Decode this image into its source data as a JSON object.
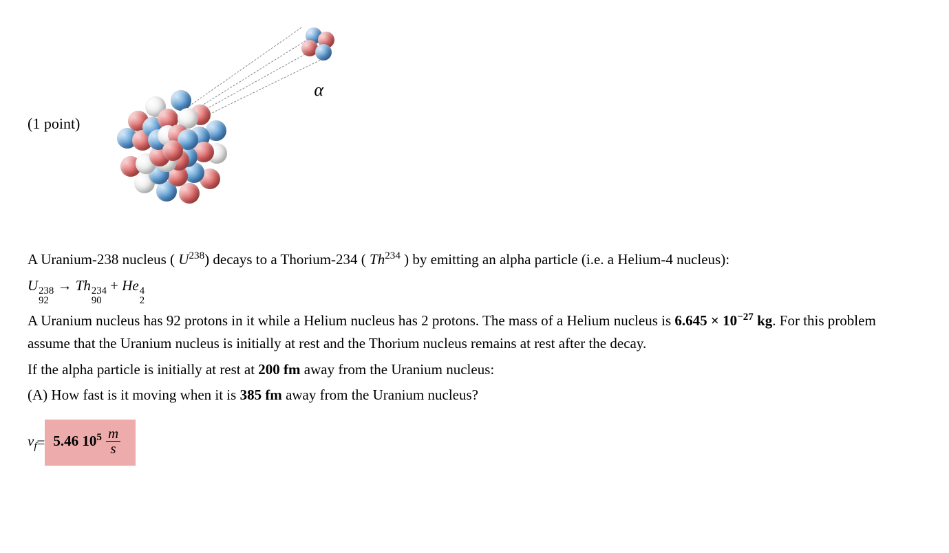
{
  "points_label": "(1 point)",
  "alpha_symbol": "α",
  "diagram": {
    "nucleus_ball_size": 30,
    "alpha_ball_size": 24,
    "colors": {
      "red": "#cc5555",
      "blue": "#5a9bd4",
      "white": "#eeeeee"
    }
  },
  "problem": {
    "line1_a": "A Uranium-238 nucleus ( ",
    "line1_u": "U",
    "line1_u_sup": "238",
    "line1_b": ") decays to a Thorium-234 ( ",
    "line1_th": "Th",
    "line1_th_sup": "234",
    "line1_c": " ) by emitting an alpha particle (i.e. a Helium-4 nucleus):",
    "eq_u": "U",
    "eq_u_sup": "238",
    "eq_u_sub": "92",
    "eq_arrow": " → ",
    "eq_th": "Th",
    "eq_th_sup": "234",
    "eq_th_sub": "90",
    "eq_plus": " + ",
    "eq_he": "He",
    "eq_he_sup": "4",
    "eq_he_sub": "2",
    "line3_a": "A Uranium nucleus has 92 protons in it while a Helium nucleus has 2 protons. The mass of a Helium nucleus is ",
    "mass_val": "6.645 × 10",
    "mass_exp": "−27",
    "mass_unit": " kg",
    "line3_b": ". For this problem assume that the Uranium nucleus is initially at rest and the Thorium nucleus remains at rest after the decay.",
    "line4_a": "If the alpha particle is initially at rest at ",
    "r1": "200 fm",
    "line4_b": " away from the Uranium nucleus:",
    "qA_a": "(A) How fast is it moving when it is ",
    "r2": "385 fm",
    "qA_b": " away from the Uranium nucleus?"
  },
  "answer": {
    "lhs_v": "v",
    "lhs_sub": "f",
    "equals": " = ",
    "value": "5.46 10",
    "value_exp": "5",
    "unit_num": "m",
    "unit_den": "s",
    "box_bg": "#eeabab"
  }
}
